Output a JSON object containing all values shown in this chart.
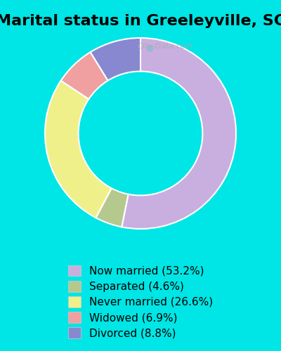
{
  "title": "Marital status in Greeleyville, SC",
  "slices": [
    53.2,
    4.6,
    26.6,
    6.9,
    8.8
  ],
  "labels": [
    "Now married (53.2%)",
    "Separated (4.6%)",
    "Never married (26.6%)",
    "Widowed (6.9%)",
    "Divorced (8.8%)"
  ],
  "colors": [
    "#c9aee0",
    "#b5c98e",
    "#f0f08a",
    "#f0a0a0",
    "#8888d0"
  ],
  "background_color": "#00e5e5",
  "chart_bg_start": "#d4edd4",
  "chart_bg_end": "#c8e8e8",
  "watermark": "City-Data.com",
  "title_fontsize": 16,
  "legend_fontsize": 11,
  "donut_width": 0.35
}
